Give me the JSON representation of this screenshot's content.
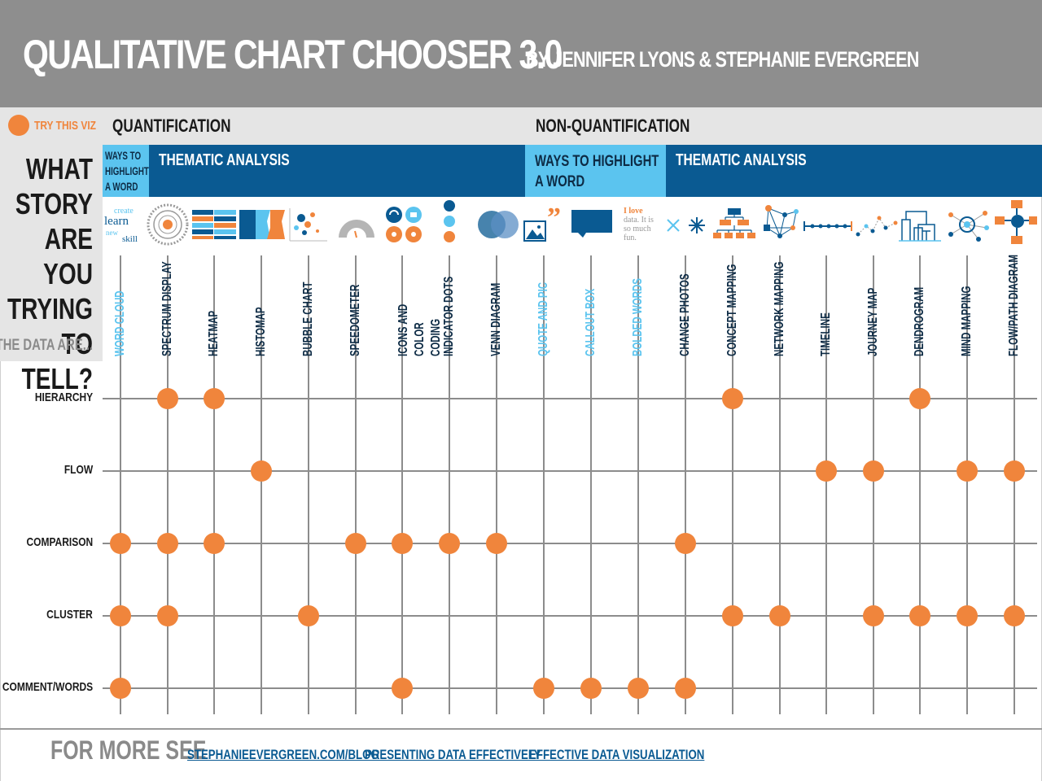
{
  "header": {
    "title": "QUALITATIVE CHART CHOOSER 3.0",
    "byline": "BY JENNIFER LYONS & STEPHANIE EVERGREEN"
  },
  "legend": {
    "label": "TRY THIS VIZ"
  },
  "categories": {
    "quantification": "QUANTIFICATION",
    "non_quantification": "NON-QUANTIFICATION"
  },
  "question": {
    "text": "WHAT STORY ARE YOU TRYING TO TELL?",
    "data_are": "THE DATA ARE..."
  },
  "bands": [
    {
      "label": "WAYS TO HIGHLIGHT A WORD",
      "style": "light"
    },
    {
      "label": "THEMATIC ANALYSIS",
      "style": "dark"
    },
    {
      "label": "WAYS TO HIGHLIGHT A WORD",
      "style": "light"
    },
    {
      "label": "THEMATIC ANALYSIS",
      "style": "dark"
    }
  ],
  "icon_text": {
    "word_cloud": [
      "create",
      "learn",
      "new",
      "skill"
    ],
    "bolded_words": [
      "I love",
      "data. It is",
      "so much",
      "fun."
    ]
  },
  "columns": [
    {
      "label": "WORD CLOUD",
      "color": "#5bc4ef",
      "icon": "word-cloud-icon"
    },
    {
      "label": "SPECTRUM DISPLAY",
      "color": "#0d2b45",
      "icon": "spectrum-display-icon"
    },
    {
      "label": "HEATMAP",
      "color": "#0d2b45",
      "icon": "heatmap-icon"
    },
    {
      "label": "HISTOMAP",
      "color": "#0d2b45",
      "icon": "histomap-icon"
    },
    {
      "label": "BUBBLE CHART",
      "color": "#0d2b45",
      "icon": "bubble-chart-icon"
    },
    {
      "label": "SPEEDOMETER",
      "color": "#0d2b45",
      "icon": "speedometer-icon"
    },
    {
      "label": "ICONS AND COLOR CODING",
      "color": "#0d2b45",
      "icon": "icons-color-coding-icon"
    },
    {
      "label": "INDICATOR DOTS",
      "color": "#0d2b45",
      "icon": "indicator-dots-icon"
    },
    {
      "label": "VENN DIAGRAM",
      "color": "#0d2b45",
      "icon": "venn-diagram-icon"
    },
    {
      "label": "QUOTE AND PIC",
      "color": "#5bc4ef",
      "icon": "quote-and-pic-icon"
    },
    {
      "label": "CALLOUT BOX",
      "color": "#5bc4ef",
      "icon": "callout-box-icon"
    },
    {
      "label": "BOLDED WORDS",
      "color": "#5bc4ef",
      "icon": "bolded-words-icon"
    },
    {
      "label": "CHANGE PHOTOS",
      "color": "#0d2b45",
      "icon": "change-photos-icon"
    },
    {
      "label": "CONCEPT MAPPING",
      "color": "#0d2b45",
      "icon": "concept-mapping-icon"
    },
    {
      "label": "NETWORK MAPPING",
      "color": "#0d2b45",
      "icon": "network-mapping-icon"
    },
    {
      "label": "TIMELINE",
      "color": "#0d2b45",
      "icon": "timeline-icon"
    },
    {
      "label": "JOURNEY MAP",
      "color": "#0d2b45",
      "icon": "journey-map-icon"
    },
    {
      "label": "DENDROGRAM",
      "color": "#0d2b45",
      "icon": "dendrogram-icon"
    },
    {
      "label": "MIND MAPPING",
      "color": "#0d2b45",
      "icon": "mind-mapping-icon"
    },
    {
      "label": "FLOW/PATH DIAGRAM",
      "color": "#0d2b45",
      "icon": "flow-path-diagram-icon"
    }
  ],
  "rows": [
    "HIERARCHY",
    "FLOW",
    "COMPARISON",
    "CLUSTER",
    "COMMENT/WORDS"
  ],
  "matrix": {
    "HIERARCHY": [
      "SPECTRUM DISPLAY",
      "HEATMAP",
      "CONCEPT MAPPING",
      "DENDROGRAM"
    ],
    "FLOW": [
      "HISTOMAP",
      "TIMELINE",
      "JOURNEY MAP",
      "MIND MAPPING",
      "FLOW/PATH DIAGRAM"
    ],
    "COMPARISON": [
      "WORD CLOUD",
      "SPECTRUM DISPLAY",
      "HEATMAP",
      "SPEEDOMETER",
      "ICONS AND COLOR CODING",
      "INDICATOR DOTS",
      "VENN DIAGRAM",
      "CHANGE PHOTOS"
    ],
    "CLUSTER": [
      "WORD CLOUD",
      "SPECTRUM DISPLAY",
      "BUBBLE CHART",
      "CONCEPT MAPPING",
      "NETWORK MAPPING",
      "JOURNEY MAP",
      "DENDROGRAM",
      "MIND MAPPING",
      "FLOW/PATH DIAGRAM"
    ],
    "COMMENT/WORDS": [
      "WORD CLOUD",
      "ICONS AND COLOR CODING",
      "QUOTE AND PIC",
      "CALLOUT BOX",
      "BOLDED WORDS",
      "CHANGE PHOTOS"
    ]
  },
  "colors": {
    "accent": "#f0853c",
    "dark_blue": "#0a5a92",
    "light_blue": "#5bc4ef",
    "grid": "#8c8c8c"
  },
  "footer": {
    "lead": "FOR MORE SEE",
    "links": [
      "STEPHANIEEVERGREEN.COM/BLOG",
      "PRESENTING DATA EFFECTIVELY",
      "EFFECTIVE DATA VISUALIZATION"
    ]
  }
}
